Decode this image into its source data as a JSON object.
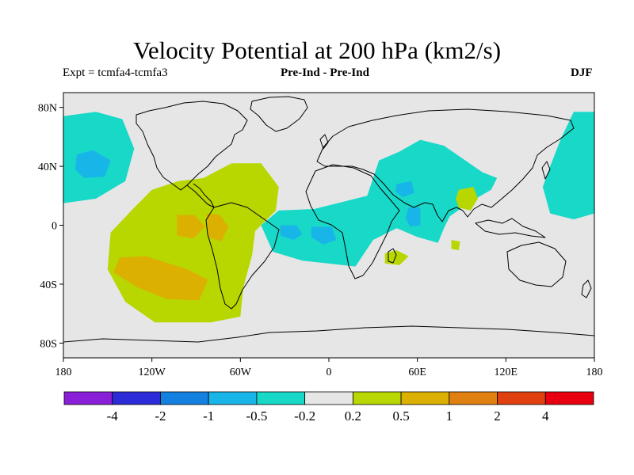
{
  "chart_data": {
    "type": "heatmap",
    "title": "Velocity Potential at 200 hPa (km2/s)",
    "subtitle_left": "Expt = tcmfa4-tcmfa3",
    "subtitle_center": "Pre-Ind - Pre-Ind",
    "subtitle_right": "DJF",
    "x_range": [
      -180,
      180
    ],
    "y_range": [
      -90,
      90
    ],
    "x_ticks": [
      {
        "value": -180,
        "label": "180"
      },
      {
        "value": -120,
        "label": "120W"
      },
      {
        "value": -60,
        "label": "60W"
      },
      {
        "value": 0,
        "label": "0"
      },
      {
        "value": 60,
        "label": "60E"
      },
      {
        "value": 120,
        "label": "120E"
      },
      {
        "value": 180,
        "label": "180"
      }
    ],
    "y_ticks": [
      {
        "value": 80,
        "label": "80N"
      },
      {
        "value": 40,
        "label": "40N"
      },
      {
        "value": 0,
        "label": "0"
      },
      {
        "value": -40,
        "label": "40S"
      },
      {
        "value": -80,
        "label": "80S"
      }
    ],
    "colorbar": {
      "levels": [
        "-4",
        "-2",
        "-1",
        "-0.5",
        "-0.2",
        "0.2",
        "0.5",
        "1",
        "2",
        "4"
      ],
      "colors": [
        "#8a1fd8",
        "#2b2bd8",
        "#1480e0",
        "#18b6e8",
        "#18d8c8",
        "#e6e6e6",
        "#b8d600",
        "#dcb000",
        "#e08010",
        "#e04010",
        "#e80010"
      ]
    },
    "regions": [
      {
        "name": "north-pacific-negative",
        "bin": "-0.5 to -0.2",
        "points": [
          [
            -180,
            74
          ],
          [
            -158,
            77
          ],
          [
            -140,
            72
          ],
          [
            -132,
            52
          ],
          [
            -138,
            30
          ],
          [
            -158,
            18
          ],
          [
            -180,
            15
          ]
        ]
      },
      {
        "name": "north-pacific-core",
        "bin": "-1 to -0.5",
        "points": [
          [
            -171,
            48
          ],
          [
            -160,
            51
          ],
          [
            -148,
            44
          ],
          [
            -152,
            33
          ],
          [
            -166,
            32
          ],
          [
            -172,
            38
          ]
        ]
      },
      {
        "name": "east-pacific-america-positive",
        "bin": "0.2 to 0.5",
        "points": [
          [
            -132,
            12
          ],
          [
            -120,
            24
          ],
          [
            -102,
            30
          ],
          [
            -85,
            32
          ],
          [
            -66,
            42
          ],
          [
            -46,
            42
          ],
          [
            -34,
            26
          ],
          [
            -36,
            10
          ],
          [
            -50,
            -4
          ],
          [
            -52,
            -20
          ],
          [
            -58,
            -42
          ],
          [
            -60,
            -62
          ],
          [
            -80,
            -66
          ],
          [
            -118,
            -66
          ],
          [
            -138,
            -52
          ],
          [
            -150,
            -30
          ],
          [
            -148,
            -5
          ]
        ]
      },
      {
        "name": "subtropical-positive-core",
        "bin": "0.5 to 1",
        "points": [
          [
            -142,
            -22
          ],
          [
            -124,
            -21
          ],
          [
            -96,
            -30
          ],
          [
            -82,
            -37
          ],
          [
            -88,
            -51
          ],
          [
            -110,
            -50
          ],
          [
            -130,
            -42
          ],
          [
            -146,
            -32
          ]
        ]
      },
      {
        "name": "equatorial-positive-core",
        "bin": "0.5 to 1",
        "points": [
          [
            -103,
            7
          ],
          [
            -91,
            7
          ],
          [
            -84,
            -1
          ],
          [
            -92,
            -9
          ],
          [
            -103,
            -7
          ]
        ]
      },
      {
        "name": "andes-positive-core",
        "bin": "0.5 to 1",
        "points": [
          [
            -83,
            8
          ],
          [
            -74,
            7
          ],
          [
            -68,
            -1
          ],
          [
            -73,
            -11
          ],
          [
            -82,
            -8
          ]
        ]
      },
      {
        "name": "atlantic-africa-asia-negative",
        "bin": "-0.5 to -0.2",
        "points": [
          [
            -46,
            0
          ],
          [
            -34,
            10
          ],
          [
            -10,
            11
          ],
          [
            10,
            16
          ],
          [
            26,
            20
          ],
          [
            34,
            44
          ],
          [
            48,
            50
          ],
          [
            62,
            58
          ],
          [
            78,
            54
          ],
          [
            104,
            36
          ],
          [
            114,
            32
          ],
          [
            110,
            24
          ],
          [
            96,
            16
          ],
          [
            82,
            6
          ],
          [
            78,
            -2
          ],
          [
            74,
            -12
          ],
          [
            60,
            -8
          ],
          [
            46,
            -2
          ],
          [
            30,
            -10
          ],
          [
            18,
            -28
          ],
          [
            0,
            -26
          ],
          [
            -18,
            -24
          ],
          [
            -38,
            -18
          ]
        ]
      },
      {
        "name": "atlantic-negative-core-west",
        "bin": "-1 to -0.5",
        "points": [
          [
            -33,
            0
          ],
          [
            -22,
            0
          ],
          [
            -18,
            -6
          ],
          [
            -24,
            -10
          ],
          [
            -33,
            -7
          ]
        ]
      },
      {
        "name": "atlantic-negative-core-east",
        "bin": "-1 to -0.5",
        "points": [
          [
            -12,
            -1
          ],
          [
            2,
            -1
          ],
          [
            5,
            -10
          ],
          [
            -4,
            -13
          ],
          [
            -12,
            -8
          ]
        ]
      },
      {
        "name": "arabia-negative-core",
        "bin": "-1 to -0.5",
        "points": [
          [
            46,
            28
          ],
          [
            56,
            30
          ],
          [
            58,
            22
          ],
          [
            50,
            19
          ],
          [
            45,
            23
          ]
        ]
      },
      {
        "name": "indian-ocean-negative-core",
        "bin": "-1 to -0.5",
        "points": [
          [
            54,
            12
          ],
          [
            62,
            12
          ],
          [
            62,
            0
          ],
          [
            55,
            -1
          ],
          [
            52,
            5
          ]
        ]
      },
      {
        "name": "southeast-asia-positive",
        "bin": "0.2 to 0.5",
        "points": [
          [
            88,
            24
          ],
          [
            98,
            26
          ],
          [
            101,
            18
          ],
          [
            96,
            10
          ],
          [
            88,
            12
          ],
          [
            86,
            18
          ]
        ]
      },
      {
        "name": "madagascar-positive",
        "bin": "0.2 to 0.5",
        "points": [
          [
            38,
            -19
          ],
          [
            46,
            -17
          ],
          [
            54,
            -21
          ],
          [
            48,
            -27
          ],
          [
            38,
            -26
          ]
        ]
      },
      {
        "name": "indian-ocean-positive-spot",
        "bin": "0.2 to 0.5",
        "points": [
          [
            83,
            -10
          ],
          [
            89,
            -11
          ],
          [
            88,
            -17
          ],
          [
            83,
            -16
          ]
        ]
      },
      {
        "name": "west-pacific-negative",
        "bin": "-0.5 to -0.2",
        "points": [
          [
            180,
            77
          ],
          [
            166,
            77
          ],
          [
            157,
            58
          ],
          [
            150,
            40
          ],
          [
            145,
            26
          ],
          [
            150,
            8
          ],
          [
            166,
            4
          ],
          [
            180,
            8
          ]
        ]
      }
    ]
  }
}
